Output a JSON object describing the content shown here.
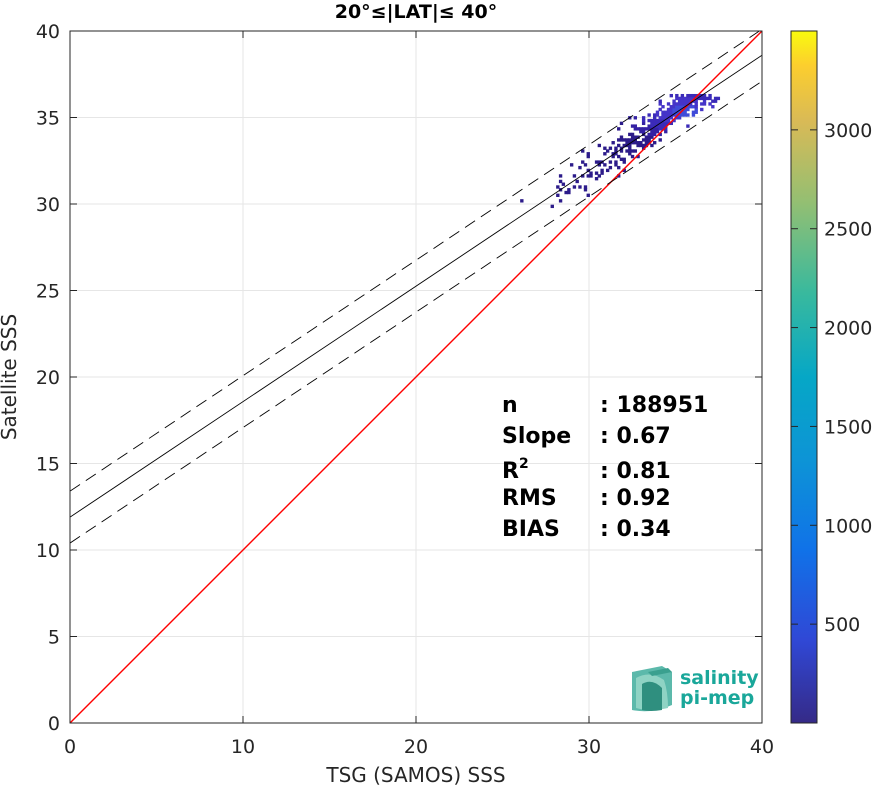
{
  "chart_data": {
    "type": "heatmap",
    "title": "20°≤|LAT|≤ 40°",
    "xlabel": "TSG (SAMOS) SSS",
    "ylabel": "Satellite SSS",
    "xlim": [
      0,
      40
    ],
    "ylim": [
      0,
      40
    ],
    "xticks": [
      "0",
      "10",
      "20",
      "30",
      "40"
    ],
    "yticks": [
      "0",
      "5",
      "10",
      "15",
      "20",
      "25",
      "30",
      "35",
      "40"
    ],
    "grid": true,
    "colorbar": {
      "range": [
        0,
        3500
      ],
      "ticks": [
        "500",
        "1000",
        "1500",
        "2000",
        "2500",
        "3000"
      ],
      "colormap": "parula"
    },
    "density_region": {
      "x_range": [
        22.5,
        38.5
      ],
      "y_range": [
        29.0,
        36.3
      ],
      "core": {
        "x": 35.5,
        "y": 35.3
      }
    },
    "lines": [
      {
        "name": "",
        "kind": "identity",
        "color": "#ff0000",
        "x": [
          0,
          40
        ],
        "y": [
          0,
          40
        ]
      },
      {
        "name": "",
        "kind": "fit",
        "color": "#000000",
        "x": [
          0,
          40
        ],
        "y": [
          11.9,
          38.6
        ]
      },
      {
        "name": "",
        "kind": "fit-upper",
        "color": "#000000",
        "dash": true,
        "x": [
          0,
          40
        ],
        "y": [
          13.4,
          40.1
        ]
      },
      {
        "name": "",
        "kind": "fit-lower",
        "color": "#000000",
        "dash": true,
        "x": [
          0,
          40
        ],
        "y": [
          10.4,
          37.1
        ]
      }
    ],
    "stats": [
      {
        "label": "n",
        "value": ": 188951"
      },
      {
        "label": "Slope",
        "value": ": 0.67"
      },
      {
        "label": "R",
        "sup": "2",
        "value": ": 0.81"
      },
      {
        "label": "RMS",
        "value": ": 0.92"
      },
      {
        "label": "BIAS",
        "value": ": 0.34"
      }
    ]
  },
  "logo": {
    "line1": "salinity",
    "line2": "pi-mep",
    "color": "#1aa79a"
  }
}
